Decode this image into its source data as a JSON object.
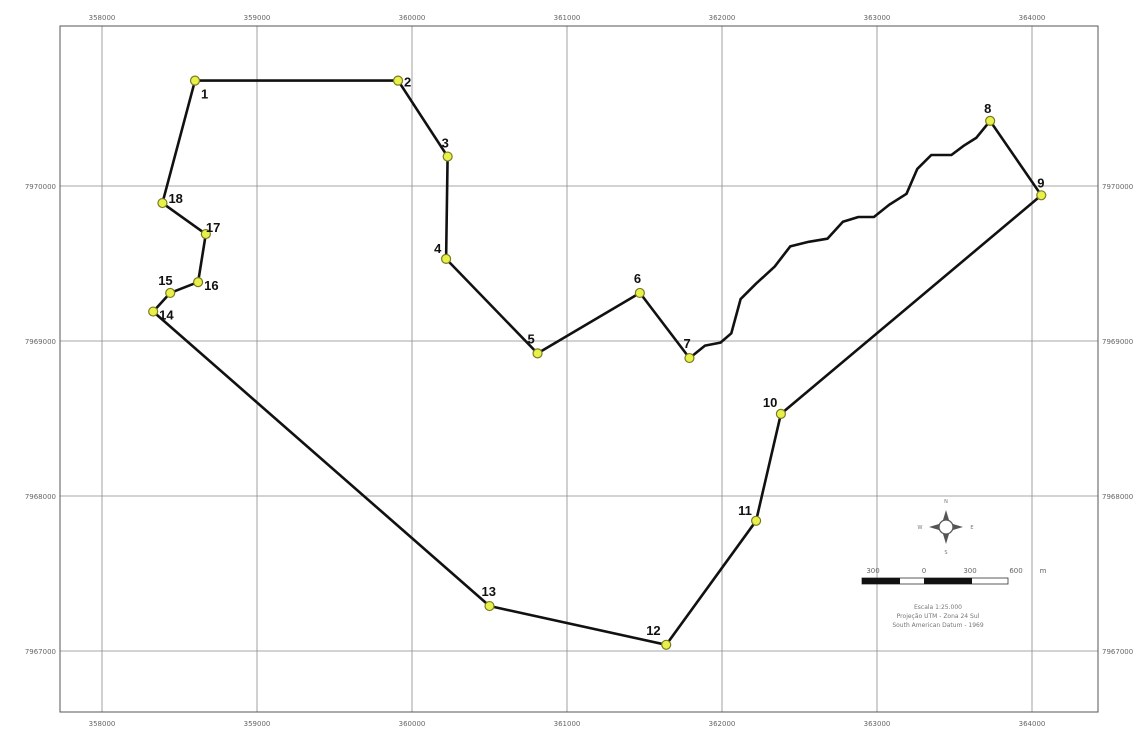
{
  "map": {
    "x_ticks": [
      "358000",
      "359000",
      "360000",
      "361000",
      "362000",
      "363000",
      "364000"
    ],
    "y_ticks": [
      "7970000",
      "7969000",
      "7968000",
      "7967000"
    ],
    "vertices": [
      {
        "id": "1",
        "e": 358600,
        "n": 7970680
      },
      {
        "id": "2",
        "e": 359910,
        "n": 7970680
      },
      {
        "id": "3",
        "e": 360230,
        "n": 7970190
      },
      {
        "id": "4",
        "e": 360220,
        "n": 7969530
      },
      {
        "id": "5",
        "e": 360810,
        "n": 7968920
      },
      {
        "id": "6",
        "e": 361470,
        "n": 7969310
      },
      {
        "id": "7",
        "e": 361790,
        "n": 7968890
      },
      {
        "id": "8",
        "e": 363730,
        "n": 7970420
      },
      {
        "id": "9",
        "e": 364060,
        "n": 7969940
      },
      {
        "id": "10",
        "e": 362380,
        "n": 7968530
      },
      {
        "id": "11",
        "e": 362220,
        "n": 7967840
      },
      {
        "id": "12",
        "e": 361640,
        "n": 7967040
      },
      {
        "id": "13",
        "e": 360500,
        "n": 7967290
      },
      {
        "id": "14",
        "e": 358330,
        "n": 7969190
      },
      {
        "id": "15",
        "e": 358440,
        "n": 7969310
      },
      {
        "id": "16",
        "e": 358620,
        "n": 7969380
      },
      {
        "id": "17",
        "e": 358670,
        "n": 7969690
      },
      {
        "id": "18",
        "e": 358390,
        "n": 7969890
      }
    ],
    "river_path": [
      [
        361790,
        7968890
      ],
      [
        361890,
        7968970
      ],
      [
        361990,
        7968990
      ],
      [
        362060,
        7969050
      ],
      [
        362120,
        7969270
      ],
      [
        362220,
        7969370
      ],
      [
        362340,
        7969480
      ],
      [
        362440,
        7969610
      ],
      [
        362560,
        7969640
      ],
      [
        362680,
        7969660
      ],
      [
        362780,
        7969770
      ],
      [
        362880,
        7969800
      ],
      [
        362980,
        7969800
      ],
      [
        363080,
        7969880
      ],
      [
        363190,
        7969950
      ],
      [
        363260,
        7970110
      ],
      [
        363350,
        7970200
      ],
      [
        363480,
        7970200
      ],
      [
        363560,
        7970260
      ],
      [
        363640,
        7970310
      ],
      [
        363730,
        7970420
      ]
    ]
  },
  "scale_bar": {
    "labels": [
      "300",
      "0",
      "300",
      "600"
    ],
    "unit": "m"
  },
  "info": {
    "line1": "Escala 1:25.000",
    "line2": "Projeção UTM - Zona 24 Sul",
    "line3": "South American Datum - 1969"
  },
  "compass": {
    "n": "N",
    "s": "S",
    "e": "E",
    "w": "W"
  }
}
